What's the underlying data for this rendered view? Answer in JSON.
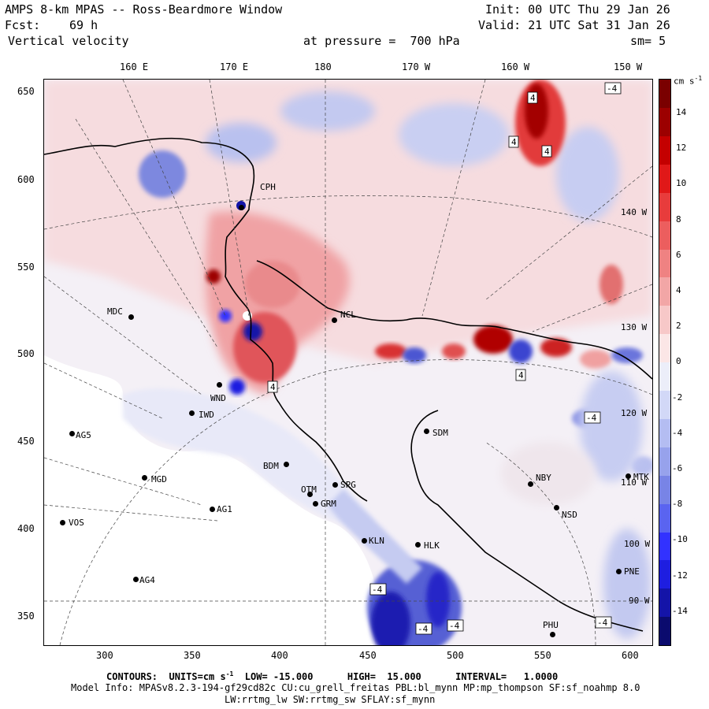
{
  "header": {
    "title": "AMPS 8-km MPAS -- Ross-Beardmore Window",
    "init": "Init: 00 UTC Thu 29 Jan 26",
    "fcst_label": "Fcst:",
    "fcst_value": "69 h",
    "valid": "Valid: 21 UTC Sat 31 Jan 26",
    "field": "Vertical velocity",
    "pressure": "at pressure =  700 hPa",
    "smoothing": "sm= 5"
  },
  "map": {
    "lon_labels": [
      "160 E",
      "170 E",
      "180",
      "170 W",
      "160 W",
      "150 W"
    ],
    "x_ticks": [
      "300",
      "350",
      "400",
      "450",
      "500",
      "550",
      "600"
    ],
    "y_ticks": [
      "650",
      "600",
      "550",
      "500",
      "450",
      "400",
      "350"
    ],
    "right_lon_labels": [
      "140 W",
      "130 W",
      "120 W",
      "110 W",
      "100 W",
      "90 W"
    ],
    "contour_labels": [
      "4",
      "4",
      "4",
      "4",
      "4",
      "-4",
      "-4",
      "-4",
      "-4",
      "-4",
      "-4"
    ],
    "stations": [
      {
        "code": "CPH"
      },
      {
        "code": "MDC"
      },
      {
        "code": "NCL"
      },
      {
        "code": "WND"
      },
      {
        "code": "IWD"
      },
      {
        "code": "AG5"
      },
      {
        "code": "SDM"
      },
      {
        "code": "BDM"
      },
      {
        "code": "MGD"
      },
      {
        "code": "OTM"
      },
      {
        "code": "SPG"
      },
      {
        "code": "GRM"
      },
      {
        "code": "AG1"
      },
      {
        "code": "VOS"
      },
      {
        "code": "NBY"
      },
      {
        "code": "MTK"
      },
      {
        "code": "NSD"
      },
      {
        "code": "HLK"
      },
      {
        "code": "KLN"
      },
      {
        "code": "AG4"
      },
      {
        "code": "PNE"
      },
      {
        "code": "PHU"
      }
    ]
  },
  "colorbar": {
    "units": "cm s",
    "units_exp": "-1",
    "labels": [
      "14",
      "12",
      "10",
      "8",
      "6",
      "4",
      "2",
      "0",
      "-2",
      "-4",
      "-6",
      "-8",
      "-10",
      "-12",
      "-14"
    ],
    "colors": [
      "#0b0b6e",
      "#1414a8",
      "#1e1ee0",
      "#3232ff",
      "#5a64f0",
      "#7884e6",
      "#97a2ec",
      "#b4bdf2",
      "#d2d8f7",
      "#eceef9",
      "#fbe6e6",
      "#f7c8c8",
      "#f2a6a6",
      "#ef8282",
      "#ec5e5e",
      "#e83c3c",
      "#e01818",
      "#c40000",
      "#9c0000",
      "#7a0000"
    ]
  },
  "footer": {
    "contours": "CONTOURS:  UNITS=cm s",
    "contours_exp": "-1",
    "contours_rest": "  LOW= -15.000      HIGH=  15.000      INTERVAL=   1.0000",
    "model_info": "Model Info: MPASv8.2.3-194-gf29cd82c CU:cu_grell_freitas PBL:bl_mynn MP:mp_thompson SF:sf_noahmp 8.0",
    "model_info2": "LW:rrtmg_lw SW:rrtmg_sw SFLAY:sf_mynn"
  }
}
